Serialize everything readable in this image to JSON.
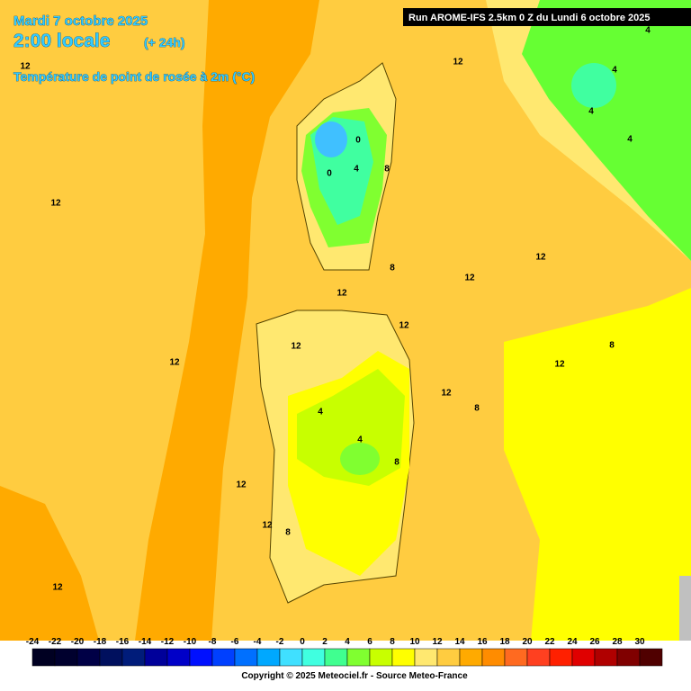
{
  "header": {
    "date": "Mardi 7 octobre 2025",
    "time": "2:00 locale",
    "lead": "(+ 24h)",
    "variable": "Température de point de rosée à 2m (°C)",
    "run": "Run AROME-IFS 2.5km 0 Z du Lundi 6 octobre 2025"
  },
  "map": {
    "contour_labels": [
      "12",
      "12",
      "4",
      "4",
      "4",
      "4",
      "0",
      "0",
      "4",
      "8",
      "12",
      "8",
      "12",
      "12",
      "12",
      "12",
      "12",
      "8",
      "12",
      "12",
      "12",
      "8",
      "4",
      "4",
      "8",
      "12",
      "12",
      "8",
      "12"
    ]
  },
  "colorbar": {
    "labels": [
      -24,
      -22,
      -20,
      -18,
      -16,
      -14,
      -12,
      -10,
      -8,
      -6,
      -4,
      -2,
      0,
      2,
      4,
      6,
      8,
      10,
      12,
      14,
      16,
      18,
      20,
      22,
      24,
      26,
      28,
      30
    ],
    "colors": [
      "#000022",
      "#00002e",
      "#000046",
      "#00105e",
      "#001c7a",
      "#00009a",
      "#0000c8",
      "#0010ff",
      "#0040ff",
      "#0070ff",
      "#00a8ff",
      "#40e0ff",
      "#40ffe0",
      "#40ff90",
      "#80ff30",
      "#c8ff00",
      "#ffff00",
      "#ffe870",
      "#ffcc40",
      "#ffaa00",
      "#ff8c00",
      "#ff6a20",
      "#ff4020",
      "#ff2000",
      "#e00000",
      "#b00000",
      "#800000",
      "#500000"
    ]
  },
  "footer": {
    "copyright": "Copyright © 2025 Meteociel.fr - Source Meteo-France"
  }
}
